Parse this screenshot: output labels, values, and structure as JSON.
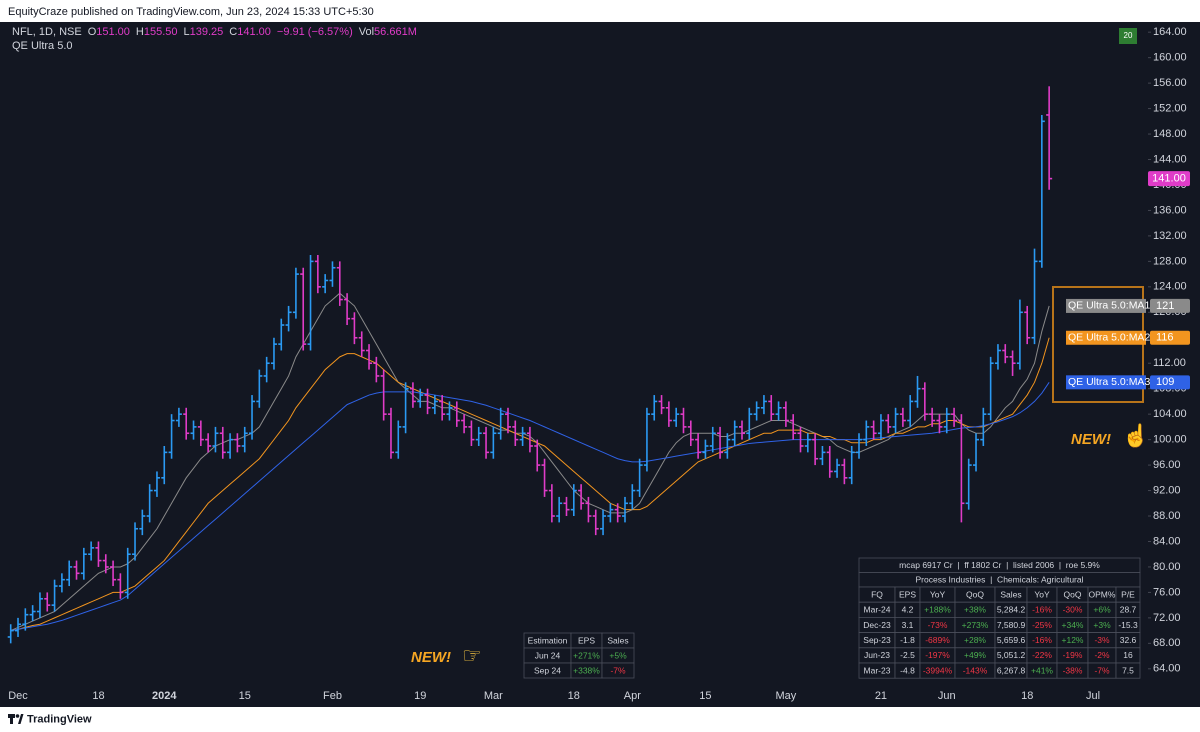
{
  "header": {
    "text": "EquityCraze published on TradingView.com, Jun 23, 2024 15:33 UTC+5:30"
  },
  "footer": {
    "brand": "TradingView"
  },
  "chart_data": {
    "type": "ohlc",
    "symbol": "NFL, 1D, NSE",
    "ohlc_legend": [
      {
        "label": "O",
        "value": "151.00"
      },
      {
        "label": "H",
        "value": "155.50"
      },
      {
        "label": "L",
        "value": "139.25"
      },
      {
        "label": "C",
        "value": "141.00"
      }
    ],
    "change": "−9.91 (−6.57%)",
    "volume": {
      "label": "Vol",
      "value": "56.661M"
    },
    "indicator": "QE Ultra 5.0",
    "badge": "20",
    "categories": [
      null,
      "Dec",
      null,
      null,
      null,
      null,
      null,
      null,
      null,
      null,
      null,
      null,
      "18",
      null,
      null,
      null,
      null,
      null,
      null,
      null,
      null,
      "2024",
      null,
      null,
      null,
      null,
      null,
      null,
      null,
      null,
      null,
      null,
      "15",
      null,
      null,
      null,
      null,
      null,
      null,
      null,
      null,
      null,
      null,
      null,
      "Feb",
      null,
      null,
      null,
      null,
      null,
      null,
      null,
      null,
      null,
      null,
      null,
      "19",
      null,
      null,
      null,
      null,
      null,
      null,
      null,
      null,
      null,
      "Mar",
      null,
      null,
      null,
      null,
      null,
      null,
      null,
      null,
      null,
      null,
      "18",
      null,
      null,
      null,
      null,
      null,
      null,
      null,
      "Apr",
      null,
      null,
      null,
      null,
      null,
      null,
      null,
      null,
      null,
      "15",
      null,
      null,
      null,
      null,
      null,
      null,
      null,
      null,
      null,
      null,
      "May",
      null,
      null,
      null,
      null,
      null,
      null,
      null,
      null,
      null,
      null,
      null,
      null,
      "21",
      null,
      null,
      null,
      null,
      null,
      null,
      null,
      null,
      "Jun",
      null,
      null,
      null,
      null,
      null,
      null,
      null,
      null,
      null,
      null,
      "18",
      null,
      null,
      null,
      null,
      null,
      null,
      null,
      null,
      "Jul"
    ],
    "open": [
      69,
      70,
      71,
      72.5,
      73,
      75,
      74,
      77,
      78,
      80,
      79,
      82,
      83,
      81,
      80,
      78,
      76,
      82,
      86,
      88,
      92,
      94,
      98,
      103,
      104,
      101,
      102,
      100,
      99,
      101,
      98,
      100,
      99,
      101,
      106,
      110,
      112,
      115,
      118,
      120,
      126,
      115,
      128,
      124,
      125,
      127,
      122,
      119,
      116,
      114,
      112,
      110,
      104,
      98,
      102,
      108,
      106,
      107,
      105,
      106,
      104,
      105,
      103,
      102,
      100,
      101,
      98,
      101,
      104,
      102,
      100,
      101,
      99,
      96,
      92,
      88,
      90,
      89,
      92,
      90,
      88,
      86,
      88,
      89,
      88,
      90,
      92,
      96,
      104,
      106,
      105,
      103,
      104,
      102,
      100,
      98,
      99,
      101,
      98,
      100,
      102,
      101,
      104,
      105,
      106,
      104,
      105,
      103,
      101,
      99,
      100,
      97,
      98,
      95,
      96,
      94,
      98,
      100,
      102,
      101,
      103,
      102,
      104,
      103,
      106,
      108,
      104,
      103,
      102,
      104,
      103,
      90,
      96,
      100,
      104,
      112,
      114,
      113,
      112,
      120,
      116,
      128,
      151,
      null,
      null,
      null,
      null,
      null,
      null
    ],
    "high": [
      71,
      72,
      73.5,
      74,
      76,
      76,
      78,
      79,
      81,
      81,
      83,
      84,
      84,
      82,
      81,
      79,
      83,
      87,
      89,
      93,
      95,
      99,
      104,
      105,
      105,
      103,
      103,
      101,
      102,
      102,
      101,
      101,
      102,
      107,
      111,
      113,
      116,
      119,
      121,
      127,
      127,
      129,
      129,
      126,
      128,
      128,
      123,
      120,
      117,
      115,
      113,
      111,
      105,
      103,
      109,
      109,
      108,
      108,
      107,
      107,
      106,
      106,
      104,
      103,
      102,
      102,
      102,
      105,
      105,
      103,
      102,
      102,
      100,
      97,
      93,
      91,
      91,
      93,
      93,
      91,
      89,
      89,
      90,
      90,
      91,
      93,
      97,
      105,
      107,
      107,
      106,
      105,
      105,
      103,
      101,
      100,
      102,
      102,
      101,
      103,
      103,
      105,
      106,
      107,
      107,
      106,
      106,
      104,
      102,
      101,
      101,
      99,
      99,
      97,
      97,
      99,
      101,
      103,
      103,
      104,
      104,
      105,
      105,
      107,
      110,
      109,
      105,
      104,
      105,
      105,
      104,
      97,
      101,
      105,
      113,
      115,
      115,
      114,
      122,
      121,
      130,
      151,
      155.5,
      null,
      null,
      null,
      null,
      null,
      null
    ],
    "low": [
      68,
      69,
      70,
      71.5,
      72,
      73,
      73,
      76,
      77,
      78,
      78,
      81,
      80,
      79,
      77,
      75,
      75,
      81,
      85,
      87,
      91,
      93,
      97,
      102,
      100,
      100,
      99,
      98,
      98,
      97,
      97,
      98,
      98,
      100,
      105,
      109,
      111,
      114,
      117,
      119,
      114,
      114,
      123,
      123,
      124,
      121,
      118,
      115,
      113,
      111,
      109,
      103,
      97,
      97,
      101,
      105,
      105,
      104,
      104,
      103,
      103,
      102,
      101,
      99,
      99,
      97,
      97,
      100,
      101,
      99,
      99,
      98,
      95,
      91,
      87,
      87,
      88,
      88,
      89,
      87,
      85,
      85,
      87,
      87,
      87,
      89,
      91,
      95,
      103,
      104,
      102,
      102,
      101,
      99,
      97,
      97,
      98,
      97,
      97,
      99,
      100,
      100,
      103,
      104,
      103,
      103,
      102,
      100,
      98,
      98,
      96,
      96,
      94,
      94,
      93,
      93,
      97,
      99,
      100,
      100,
      101,
      101,
      102,
      102,
      105,
      103,
      102,
      101,
      101,
      102,
      87,
      89,
      95,
      99,
      103,
      111,
      112,
      110,
      111,
      115,
      115,
      127,
      139.25,
      null,
      null,
      null,
      null,
      null,
      null
    ],
    "close": [
      70,
      71,
      72.5,
      73,
      75,
      74,
      77,
      78,
      80,
      79,
      82,
      83,
      81,
      80,
      78,
      76,
      82,
      86,
      88,
      92,
      94,
      98,
      103,
      104,
      101,
      102,
      100,
      99,
      101,
      98,
      100,
      99,
      101,
      106,
      110,
      112,
      115,
      118,
      120,
      126,
      115,
      128,
      124,
      125,
      127,
      122,
      119,
      116,
      114,
      112,
      110,
      104,
      98,
      102,
      108,
      106,
      107,
      105,
      106,
      104,
      105,
      103,
      102,
      100,
      101,
      98,
      101,
      104,
      102,
      100,
      101,
      99,
      96,
      92,
      88,
      90,
      89,
      92,
      90,
      88,
      86,
      88,
      89,
      88,
      90,
      92,
      96,
      104,
      106,
      105,
      103,
      104,
      102,
      100,
      98,
      99,
      101,
      98,
      100,
      102,
      101,
      104,
      105,
      106,
      104,
      105,
      103,
      101,
      99,
      100,
      97,
      98,
      95,
      96,
      94,
      98,
      100,
      102,
      101,
      103,
      102,
      104,
      103,
      106,
      108,
      104,
      103,
      102,
      104,
      103,
      90,
      96,
      100,
      104,
      112,
      114,
      113,
      112,
      120,
      116,
      128,
      150,
      141,
      null,
      null,
      null,
      null,
      null,
      null
    ],
    "up_color": "#2b9af3",
    "down_color": "#e03cc8",
    "last_price_label": "141.00",
    "series": [
      {
        "name": "QE Ultra 5.0:MA1",
        "color": "#8a8a8a",
        "end_label": "121",
        "values": [
          70,
          70.5,
          71,
          71.5,
          72,
          72.5,
          73,
          74,
          75,
          76,
          77,
          78,
          79,
          79.5,
          80,
          80,
          80.5,
          81.5,
          83,
          84.5,
          86,
          88,
          90,
          92,
          94,
          95.5,
          97,
          98,
          99,
          99.5,
          100,
          100,
          100.5,
          101,
          102,
          104,
          106,
          108,
          110,
          113,
          115,
          117,
          119,
          121,
          122,
          123,
          122,
          121,
          119,
          117,
          115,
          113,
          111,
          109,
          108,
          107,
          106,
          106,
          105.5,
          105,
          105,
          104.5,
          104,
          103.5,
          103,
          102.5,
          102,
          101.5,
          101.5,
          101,
          101,
          100.5,
          99.5,
          98,
          96.5,
          95,
          93.5,
          92,
          91,
          90,
          89.5,
          89,
          88.5,
          88.5,
          88.5,
          89,
          90,
          92,
          94,
          96,
          98,
          99.5,
          100.5,
          101,
          101,
          101,
          101,
          100.5,
          100.5,
          101,
          101,
          101.5,
          102,
          102.5,
          103,
          103,
          103,
          102.5,
          102,
          101.5,
          101,
          100.5,
          100,
          99,
          98.5,
          98,
          98,
          98.5,
          99,
          99.5,
          100,
          101,
          101.5,
          102,
          103,
          104,
          104,
          104,
          104,
          104,
          102.5,
          101.5,
          101,
          101,
          102,
          103.5,
          105,
          106,
          108,
          109.5,
          112,
          117,
          121,
          null,
          null,
          null,
          null,
          null,
          null
        ]
      },
      {
        "name": "QE Ultra 5.0:MA2",
        "color": "#f2951f",
        "end_label": "116",
        "values": [
          70,
          70.2,
          70.5,
          70.8,
          71,
          71.5,
          72,
          72.5,
          73,
          73.5,
          74,
          74.5,
          75,
          75.5,
          76,
          76,
          76.5,
          77,
          78,
          79,
          80,
          81,
          82.5,
          84,
          85.5,
          87,
          88.5,
          90,
          91,
          92,
          93,
          94,
          95,
          96,
          97,
          98.5,
          100,
          101.5,
          103,
          105,
          106.5,
          108,
          109.5,
          111,
          112,
          113,
          113.5,
          113.5,
          113,
          112.5,
          112,
          111,
          110,
          109,
          108.5,
          108,
          107.5,
          107,
          106.5,
          106,
          105.5,
          105,
          104.5,
          104,
          103.5,
          103,
          102.5,
          102,
          101.5,
          101,
          100.5,
          100,
          99.5,
          99,
          98,
          97,
          96,
          95,
          94,
          93,
          92,
          91,
          90,
          89.5,
          89,
          89,
          89,
          89.5,
          90.5,
          91.5,
          92.5,
          93.5,
          94.5,
          95.5,
          96.5,
          97,
          97.5,
          98,
          98.5,
          99,
          99.5,
          100,
          100.5,
          101,
          101,
          101.5,
          101.5,
          101.5,
          101.5,
          101,
          101,
          100.5,
          100.5,
          100,
          100,
          99.5,
          99.5,
          99.5,
          100,
          100,
          100.5,
          101,
          101,
          101.5,
          102,
          102,
          102.5,
          102.5,
          103,
          103,
          102.5,
          102,
          102,
          102,
          102.5,
          103,
          103.5,
          104,
          105.5,
          107,
          109,
          112,
          116,
          null,
          null,
          null,
          null,
          null,
          null
        ]
      },
      {
        "name": "QE Ultra 5.0:MA3",
        "color": "#2f62e6",
        "end_label": "109",
        "values": [
          70,
          70.2,
          70.4,
          70.6,
          70.8,
          71,
          71.3,
          71.6,
          72,
          72.4,
          72.8,
          73.2,
          73.6,
          74,
          74.4,
          74.8,
          75.5,
          76.5,
          77.5,
          78.5,
          79.5,
          80.5,
          81.5,
          82.5,
          83.5,
          84.5,
          85.5,
          86.5,
          87.5,
          88.5,
          89.5,
          90.5,
          91.5,
          92.5,
          93.5,
          94.5,
          95.5,
          96.5,
          97.5,
          98.5,
          99.5,
          100.5,
          101.5,
          102.5,
          103.5,
          104.5,
          105.5,
          106,
          106.5,
          107,
          107.3,
          107.5,
          107.5,
          107.5,
          107.5,
          107.5,
          107.3,
          107.2,
          107,
          106.8,
          106.6,
          106.4,
          106.2,
          106,
          105.7,
          105.4,
          105,
          104.6,
          104.2,
          103.8,
          103.4,
          103,
          102.5,
          102,
          101.5,
          101,
          100.5,
          100,
          99.5,
          99,
          98.5,
          98,
          97.5,
          97,
          96.7,
          96.5,
          96.5,
          96.6,
          96.8,
          97,
          97.2,
          97.4,
          97.6,
          97.8,
          98,
          98.2,
          98.4,
          98.6,
          98.8,
          99,
          99.2,
          99.4,
          99.5,
          99.6,
          99.7,
          99.8,
          99.9,
          100,
          100,
          100,
          100,
          100,
          100,
          100,
          100,
          100,
          100,
          100.1,
          100.2,
          100.3,
          100.4,
          100.5,
          100.6,
          100.7,
          100.8,
          100.9,
          101,
          101.2,
          101.4,
          101.6,
          101.8,
          101.9,
          102,
          102.2,
          102.5,
          102.8,
          103.2,
          103.6,
          104.2,
          105,
          106,
          107.3,
          109,
          null,
          null,
          null,
          null,
          null,
          null
        ]
      }
    ],
    "ylim": [
      58,
      165.6
    ],
    "yticks": [
      {
        "value": 64,
        "label": "64.00"
      },
      {
        "value": 68,
        "label": "68.00"
      },
      {
        "value": 72,
        "label": "72.00"
      },
      {
        "value": 76,
        "label": "76.00"
      },
      {
        "value": 80,
        "label": "80.00"
      },
      {
        "value": 84,
        "label": "84.00"
      },
      {
        "value": 88,
        "label": "88.00"
      },
      {
        "value": 92,
        "label": "92.00"
      },
      {
        "value": 96,
        "label": "96.00"
      },
      {
        "value": 100,
        "label": "100.00"
      },
      {
        "value": 104,
        "label": "104.00"
      },
      {
        "value": 108,
        "label": "108.00"
      },
      {
        "value": 112,
        "label": "112.00"
      },
      {
        "value": 116,
        "label": "116.00"
      },
      {
        "value": 120,
        "label": "120.00"
      },
      {
        "value": 124,
        "label": "124.00"
      },
      {
        "value": 128,
        "label": "128.00"
      },
      {
        "value": 132,
        "label": "132.00"
      },
      {
        "value": 136,
        "label": "136.00"
      },
      {
        "value": 140,
        "label": "140.00"
      },
      {
        "value": 144,
        "label": "144.00"
      },
      {
        "value": 148,
        "label": "148.00"
      },
      {
        "value": 152,
        "label": "152.00"
      },
      {
        "value": 156,
        "label": "156.00"
      },
      {
        "value": 160,
        "label": "160.00"
      },
      {
        "value": 164,
        "label": "164.00"
      }
    ],
    "grid": false,
    "annotations": [
      {
        "text": "NEW!",
        "icon": "☞"
      },
      {
        "text": "NEW!",
        "icon": "☝"
      }
    ]
  },
  "estimation_table": {
    "columns": [
      "Estimation",
      "EPS",
      "Sales"
    ],
    "rows": [
      [
        "Jun 24",
        "+271%",
        "+5%"
      ],
      [
        "Sep 24",
        "+338%",
        "-7%"
      ]
    ]
  },
  "fundamentals_table": {
    "summary": "mcap 6917 Cr  |  ff 1802 Cr  |  listed 2006  |  roe 5.9%",
    "sector": "Process Industries  |  Chemicals: Agricultural",
    "columns": [
      "FQ",
      "EPS",
      "YoY",
      "QoQ",
      "Sales",
      "YoY",
      "QoQ",
      "OPM%",
      "P/E"
    ],
    "rows": [
      [
        "Mar-24",
        "4.2",
        "+188%",
        "+38%",
        "5,284.2",
        "-16%",
        "-30%",
        "+6%",
        "28.7"
      ],
      [
        "Dec-23",
        "3.1",
        "-73%",
        "+273%",
        "7,580.9",
        "-25%",
        "+34%",
        "+3%",
        "-15.3"
      ],
      [
        "Sep-23",
        "-1.8",
        "-689%",
        "+28%",
        "5,659.6",
        "-16%",
        "+12%",
        "-3%",
        "32.6"
      ],
      [
        "Jun-23",
        "-2.5",
        "-197%",
        "+49%",
        "5,051.2",
        "-22%",
        "-19%",
        "-2%",
        "16"
      ],
      [
        "Mar-23",
        "-4.8",
        "-3994%",
        "-143%",
        "6,267.8",
        "+41%",
        "-38%",
        "-7%",
        "7.5"
      ]
    ]
  }
}
